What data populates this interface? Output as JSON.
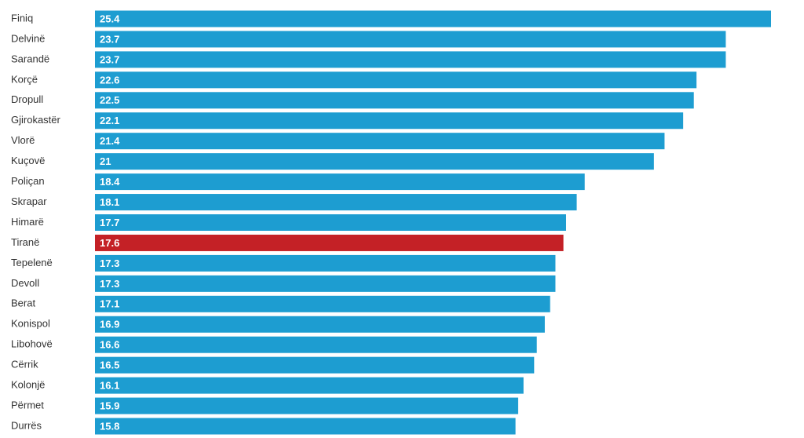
{
  "chart_data": {
    "type": "barh",
    "categories": [
      "Finiq",
      "Delvinë",
      "Sarandë",
      "Korçë",
      "Dropull",
      "Gjirokastër",
      "Vlorë",
      "Kuçovë",
      "Poliçan",
      "Skrapar",
      "Himarë",
      "Tiranë",
      "Tepelenë",
      "Devoll",
      "Berat",
      "Konispol",
      "Libohovë",
      "Cërrik",
      "Kolonjë",
      "Përmet",
      "Durrës"
    ],
    "values": [
      25.4,
      23.7,
      23.7,
      22.6,
      22.5,
      22.1,
      21.4,
      21,
      18.4,
      18.1,
      17.7,
      17.6,
      17.3,
      17.3,
      17.1,
      16.9,
      16.6,
      16.5,
      16.1,
      15.9,
      15.8
    ],
    "colors": [
      "#1d9dd1",
      "#1d9dd1",
      "#1d9dd1",
      "#1d9dd1",
      "#1d9dd1",
      "#1d9dd1",
      "#1d9dd1",
      "#1d9dd1",
      "#1d9dd1",
      "#1d9dd1",
      "#1d9dd1",
      "#c42126",
      "#1d9dd1",
      "#1d9dd1",
      "#1d9dd1",
      "#1d9dd1",
      "#1d9dd1",
      "#1d9dd1",
      "#1d9dd1",
      "#1d9dd1",
      "#1d9dd1"
    ]
  }
}
